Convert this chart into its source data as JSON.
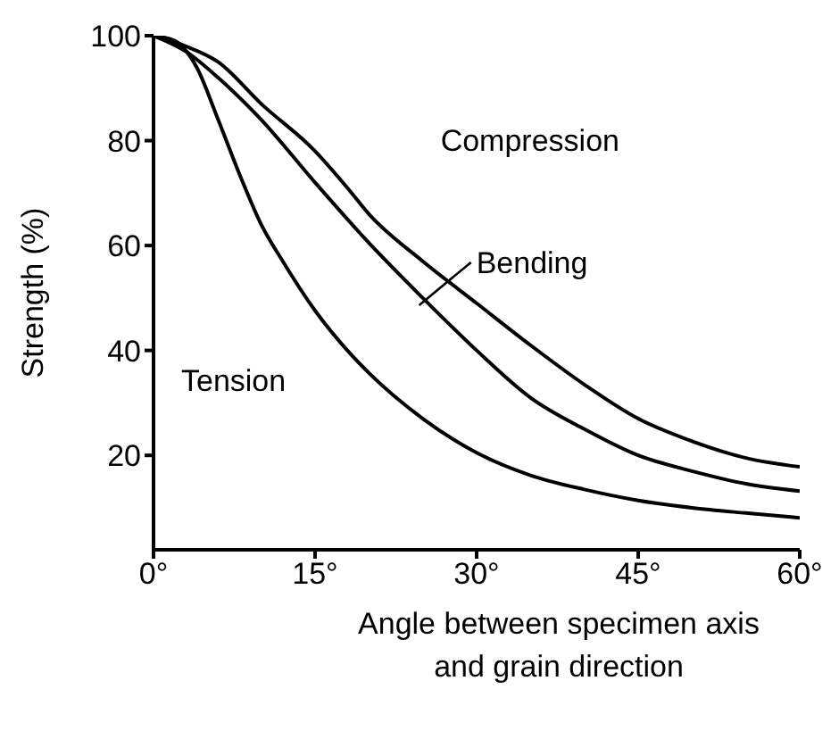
{
  "chart_data": {
    "type": "line",
    "xlabel": "Angle between specimen axis and grain direction",
    "ylabel": "Strength (%)",
    "xlim": [
      0,
      60
    ],
    "xticks": [
      {
        "value": 0,
        "label": "0°"
      },
      {
        "value": 15,
        "label": "15°"
      },
      {
        "value": 30,
        "label": "30°"
      },
      {
        "value": 45,
        "label": "45°"
      },
      {
        "value": 60,
        "label": "60°"
      }
    ],
    "ylim": [
      2,
      100
    ],
    "yticks": [
      20,
      40,
      60,
      80,
      100
    ],
    "marker": "none",
    "line_style": "solid",
    "series": [
      {
        "name": "Compression",
        "color": "#000000",
        "x": [
          0,
          3,
          6,
          10,
          15,
          18,
          20,
          25,
          30,
          35,
          40,
          45,
          50,
          55,
          60
        ],
        "values": [
          100,
          98,
          95,
          87,
          78,
          71,
          66,
          57,
          49,
          41,
          33.5,
          27,
          22.7,
          19.5,
          17.8
        ]
      },
      {
        "name": "Bending",
        "color": "#000000",
        "x": [
          0,
          3,
          6,
          10,
          15,
          20,
          25,
          30,
          35,
          40,
          45,
          50,
          55,
          60
        ],
        "values": [
          100,
          97,
          92,
          84,
          72,
          60.5,
          50,
          40,
          31,
          25,
          20,
          17,
          14.6,
          13.2
        ]
      },
      {
        "name": "Tension",
        "color": "#000000",
        "x": [
          0,
          2,
          4,
          6,
          8,
          10,
          12,
          15,
          18,
          20,
          25,
          30,
          35,
          40,
          45,
          50,
          55,
          60
        ],
        "values": [
          100,
          99,
          94,
          84,
          73.5,
          64,
          57,
          47.6,
          40,
          35.7,
          27,
          20.5,
          16.2,
          13.5,
          11.4,
          10,
          9,
          8.1
        ]
      }
    ]
  }
}
